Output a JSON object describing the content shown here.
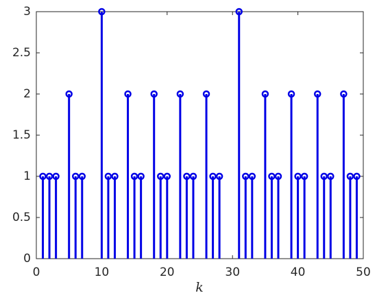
{
  "chart_data": {
    "type": "stem",
    "xlabel": "k",
    "x": [
      1,
      2,
      3,
      5,
      6,
      7,
      10,
      11,
      12,
      14,
      15,
      16,
      18,
      19,
      20,
      22,
      23,
      24,
      26,
      27,
      28,
      31,
      32,
      33,
      35,
      36,
      37,
      39,
      40,
      41,
      43,
      44,
      45,
      47,
      48,
      49
    ],
    "values": [
      1,
      1,
      1,
      2,
      1,
      1,
      3,
      1,
      1,
      2,
      1,
      1,
      2,
      1,
      1,
      2,
      1,
      1,
      2,
      1,
      1,
      3,
      1,
      1,
      2,
      1,
      1,
      2,
      1,
      1,
      2,
      1,
      1,
      2,
      1,
      1
    ],
    "color": "#0000e6",
    "xlim": [
      0,
      50
    ],
    "xticks": [
      0,
      10,
      20,
      30,
      40,
      50
    ],
    "ylim": [
      0,
      3
    ],
    "yticks": [
      0,
      0.5,
      1,
      1.5,
      2,
      2.5,
      3
    ],
    "grid": false
  }
}
